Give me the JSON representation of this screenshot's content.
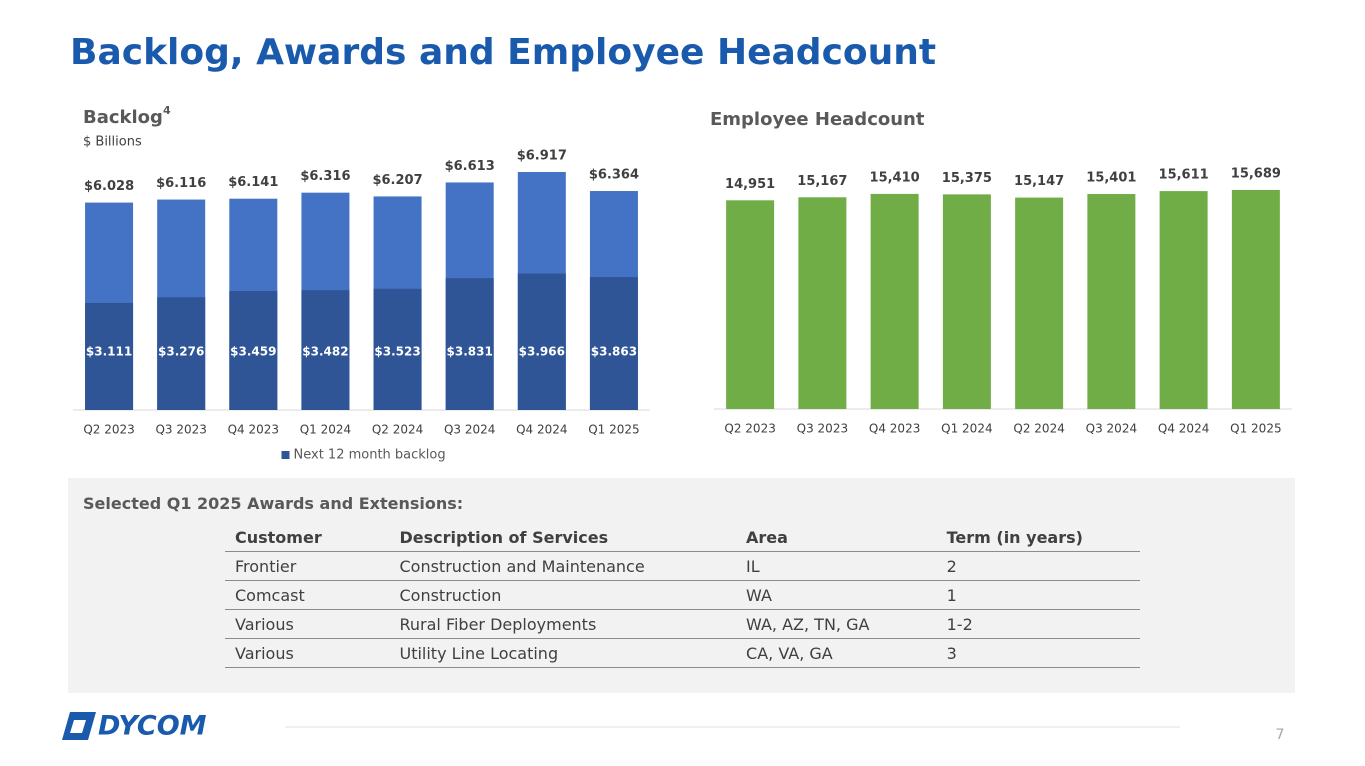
{
  "title": "Backlog, Awards and Employee Headcount",
  "chart_data": [
    {
      "type": "bar",
      "title": "Backlog",
      "title_note": "4",
      "subtitle": "$ Billions",
      "categories": [
        "Q2 2023",
        "Q3 2023",
        "Q4 2023",
        "Q1 2024",
        "Q2 2024",
        "Q3 2024",
        "Q4 2024",
        "Q1 2025"
      ],
      "values": [
        6.028,
        6.116,
        6.141,
        6.316,
        6.207,
        6.613,
        6.917,
        6.364
      ],
      "value_labels": [
        "$6.028",
        "$6.116",
        "$6.141",
        "$6.316",
        "$6.207",
        "$6.613",
        "$6.917",
        "$6.364"
      ],
      "color": "#4472c4",
      "series": [
        {
          "name": "Next 12 month backlog",
          "color": "#2f5597",
          "values": [
            3.111,
            3.276,
            3.459,
            3.482,
            3.523,
            3.831,
            3.966,
            3.863
          ],
          "value_labels": [
            "$3.111",
            "$3.276",
            "$3.459",
            "$3.482",
            "$3.523",
            "$3.831",
            "$3.966",
            "$3.863"
          ]
        }
      ],
      "legend": "bottom"
    },
    {
      "type": "bar",
      "title": "Employee Headcount",
      "categories": [
        "Q2 2023",
        "Q3 2023",
        "Q4 2023",
        "Q1 2024",
        "Q2 2024",
        "Q3 2024",
        "Q4 2024",
        "Q1 2025"
      ],
      "values": [
        14951,
        15167,
        15410,
        15375,
        15147,
        15401,
        15611,
        15689
      ],
      "value_labels": [
        "14,951",
        "15,167",
        "15,410",
        "15,375",
        "15,147",
        "15,401",
        "15,611",
        "15,689"
      ],
      "color": "#70ad47"
    }
  ],
  "awards": {
    "title": "Selected Q1 2025 Awards and Extensions:",
    "columns": [
      "Customer",
      "Description of Services",
      "Area",
      "Term (in years)"
    ],
    "rows": [
      [
        "Frontier",
        "Construction and Maintenance",
        "IL",
        "2"
      ],
      [
        "Comcast",
        "Construction",
        "WA",
        "1"
      ],
      [
        "Various",
        "Rural Fiber Deployments",
        "WA, AZ, TN, GA",
        "1-2"
      ],
      [
        "Various",
        "Utility Line Locating",
        "CA, VA, GA",
        "3"
      ]
    ]
  },
  "footer": {
    "logo": "DYCOM",
    "page": "7"
  }
}
